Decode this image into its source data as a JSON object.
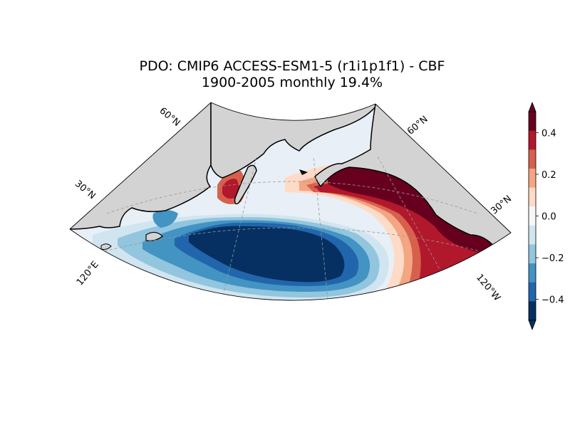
{
  "title": {
    "line1": "PDO: CMIP6 ACCESS-ESM1-5 (r1i1p1f1) - CBF",
    "line2": "1900-2005 monthly 19.4%"
  },
  "map": {
    "projection": "conic sector, North Pacific",
    "lat_labels": [
      "60°N",
      "30°N",
      "60°N",
      "30°N"
    ],
    "lon_labels": [
      "120°E",
      "120°W"
    ],
    "land_color": "#d3d3d3",
    "coastline_color": "#000000"
  },
  "colorbar": {
    "ticks": [
      "0.4",
      "0.2",
      "0.0",
      "−0.2",
      "−0.4"
    ],
    "levels": [
      0.5,
      0.4,
      0.3,
      0.2,
      0.1,
      0.0,
      -0.1,
      -0.2,
      -0.3,
      -0.4,
      -0.5
    ],
    "colors": [
      "#67001f",
      "#b2182b",
      "#d6604d",
      "#f4a582",
      "#fddbc7",
      "#f7f7f7",
      "#d1e5f0",
      "#92c5de",
      "#4393c3",
      "#2166ac",
      "#053061"
    ],
    "extend": "both",
    "range": [
      -0.5,
      0.5
    ]
  }
}
